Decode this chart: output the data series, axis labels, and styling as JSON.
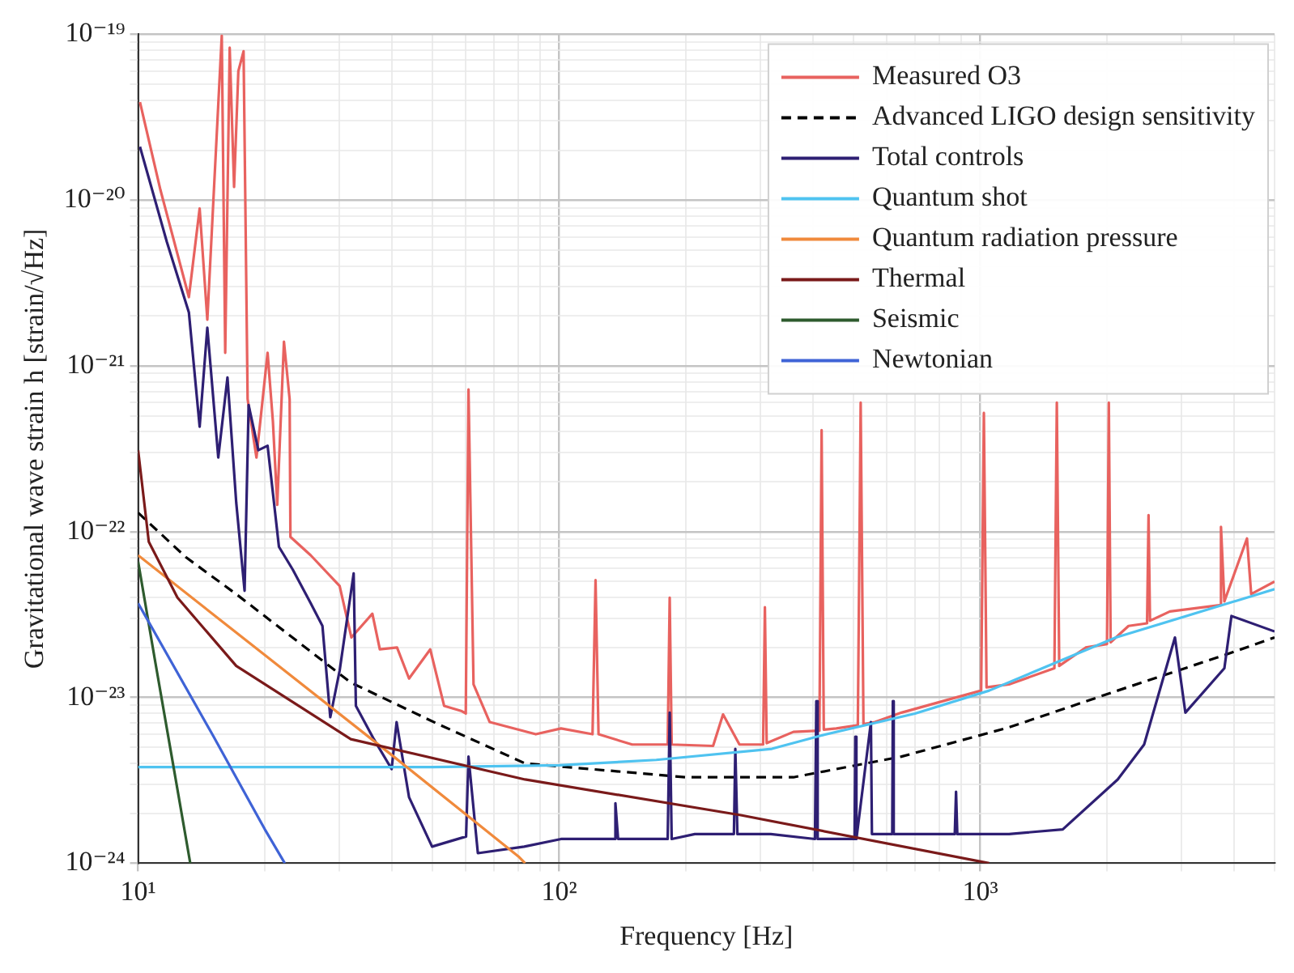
{
  "chart_data": {
    "type": "line",
    "xlabel": "Frequency [Hz]",
    "ylabel": "Gravitational wave strain h [strain/√Hz]",
    "log": "xy",
    "grid": true,
    "legend": "top right",
    "xlim": [
      10,
      5000
    ],
    "xticks": [
      {
        "value": 10,
        "label": "10¹"
      },
      {
        "value": 20,
        "label": null
      },
      {
        "value": 30,
        "label": null
      },
      {
        "value": 40,
        "label": null
      },
      {
        "value": 50,
        "label": null
      },
      {
        "value": 60,
        "label": null
      },
      {
        "value": 70,
        "label": null
      },
      {
        "value": 80,
        "label": null
      },
      {
        "value": 90,
        "label": null
      },
      {
        "value": 100,
        "label": "10²"
      },
      {
        "value": 200,
        "label": null
      },
      {
        "value": 300,
        "label": null
      },
      {
        "value": 400,
        "label": null
      },
      {
        "value": 500,
        "label": null
      },
      {
        "value": 600,
        "label": null
      },
      {
        "value": 700,
        "label": null
      },
      {
        "value": 800,
        "label": null
      },
      {
        "value": 900,
        "label": null
      },
      {
        "value": 1000,
        "label": "10³"
      },
      {
        "value": 2000,
        "label": null
      },
      {
        "value": 3000,
        "label": null
      },
      {
        "value": 4000,
        "label": null
      },
      {
        "value": 5000,
        "label": null
      }
    ],
    "ylim": [
      1e-24,
      1e-19
    ],
    "yticks": [
      {
        "value": 1e-24,
        "label": "10⁻²⁴"
      },
      {
        "value": 2e-24,
        "label": null
      },
      {
        "value": 3e-24,
        "label": null
      },
      {
        "value": 4e-24,
        "label": null
      },
      {
        "value": 5e-24,
        "label": null
      },
      {
        "value": 6e-24,
        "label": null
      },
      {
        "value": 7e-24,
        "label": null
      },
      {
        "value": 8e-24,
        "label": null
      },
      {
        "value": 9e-24,
        "label": null
      },
      {
        "value": 1e-23,
        "label": "10⁻²³"
      },
      {
        "value": 2e-23,
        "label": null
      },
      {
        "value": 3e-23,
        "label": null
      },
      {
        "value": 4e-23,
        "label": null
      },
      {
        "value": 5e-23,
        "label": null
      },
      {
        "value": 6e-23,
        "label": null
      },
      {
        "value": 7e-23,
        "label": null
      },
      {
        "value": 8e-23,
        "label": null
      },
      {
        "value": 9e-23,
        "label": null
      },
      {
        "value": 1e-22,
        "label": "10⁻²²"
      },
      {
        "value": 2e-22,
        "label": null
      },
      {
        "value": 3e-22,
        "label": null
      },
      {
        "value": 4e-22,
        "label": null
      },
      {
        "value": 5e-22,
        "label": null
      },
      {
        "value": 6e-22,
        "label": null
      },
      {
        "value": 7e-22,
        "label": null
      },
      {
        "value": 8e-22,
        "label": null
      },
      {
        "value": 9e-22,
        "label": null
      },
      {
        "value": 1e-21,
        "label": "10⁻²¹"
      },
      {
        "value": 2e-21,
        "label": null
      },
      {
        "value": 3e-21,
        "label": null
      },
      {
        "value": 4e-21,
        "label": null
      },
      {
        "value": 5e-21,
        "label": null
      },
      {
        "value": 6e-21,
        "label": null
      },
      {
        "value": 7e-21,
        "label": null
      },
      {
        "value": 8e-21,
        "label": null
      },
      {
        "value": 9e-21,
        "label": null
      },
      {
        "value": 1e-20,
        "label": "10⁻²⁰"
      },
      {
        "value": 2e-20,
        "label": null
      },
      {
        "value": 3e-20,
        "label": null
      },
      {
        "value": 4e-20,
        "label": null
      },
      {
        "value": 5e-20,
        "label": null
      },
      {
        "value": 6e-20,
        "label": null
      },
      {
        "value": 7e-20,
        "label": null
      },
      {
        "value": 8e-20,
        "label": null
      },
      {
        "value": 9e-20,
        "label": null
      },
      {
        "value": 1e-19,
        "label": "10⁻¹⁹"
      }
    ],
    "series": [
      {
        "name": "Measured O3",
        "color": "#e8625f",
        "x": [
          10.1,
          11.3,
          13.2,
          14.0,
          14.6,
          15.8,
          16.1,
          16.5,
          16.9,
          17.3,
          17.8,
          18.2,
          19.1,
          20.3,
          20.9,
          21.4,
          22.2,
          22.9,
          23.0,
          25.7,
          30.1,
          32.1,
          36.0,
          37.5,
          41.2,
          44.0,
          49.4,
          53.3,
          58.5,
          60,
          60.9,
          62.6,
          68.4,
          88,
          101,
          120,
          122,
          124,
          149,
          181,
          183,
          185,
          232,
          245,
          268,
          305,
          308,
          311,
          360,
          415,
          420,
          425,
          455,
          512,
          520,
          528,
          562,
          650,
          876,
          1005,
          1020,
          1035,
          1170,
          1500,
          1520,
          1540,
          1780,
          2000,
          2020,
          2040,
          2250,
          2490,
          2510,
          2530,
          2820,
          3700,
          3730,
          3800,
          4300,
          4400,
          5000
        ],
        "values": [
          3.9e-20,
          1.15e-20,
          2.6e-21,
          8.9e-21,
          1.9e-21,
          9.8e-20,
          1.2e-21,
          8.3e-20,
          1.2e-20,
          6e-20,
          7.9e-20,
          6.3e-22,
          2.8e-22,
          1.2e-21,
          4.6e-22,
          1.45e-22,
          1.4e-21,
          6.3e-22,
          9.3e-23,
          7.2e-23,
          4.7e-23,
          2.3e-23,
          3.2e-23,
          1.95e-23,
          2e-23,
          1.3e-23,
          1.95e-23,
          8.9e-24,
          8.3e-24,
          8e-24,
          7.2e-22,
          1.2e-23,
          7.1e-24,
          6e-24,
          6.5e-24,
          6e-24,
          5.1e-23,
          6e-24,
          5.2e-24,
          5.2e-24,
          4e-23,
          5.2e-24,
          5.1e-24,
          7.9e-24,
          5.2e-24,
          5.2e-24,
          3.5e-23,
          5.3e-24,
          6.2e-24,
          6.3e-24,
          4.1e-22,
          6.4e-24,
          6.5e-24,
          6.8e-24,
          6e-22,
          6.9e-24,
          7.1e-24,
          8.1e-24,
          1e-23,
          1.1e-23,
          5.2e-22,
          1.15e-23,
          1.2e-23,
          1.5e-23,
          6e-22,
          1.55e-23,
          2e-23,
          2.1e-23,
          6e-22,
          2.15e-23,
          2.7e-23,
          2.8e-23,
          1.26e-22,
          2.9e-23,
          3.3e-23,
          3.6e-23,
          1.07e-22,
          3.8e-23,
          9.1e-23,
          4.2e-23,
          5e-23
        ]
      },
      {
        "name": "Advanced LIGO design sensitivity",
        "color": "#000000",
        "line_style": "dashed",
        "x": [
          10,
          13,
          17.1,
          32,
          51,
          83,
          200,
          360,
          650,
          1170,
          2120,
          3800,
          5000
        ],
        "values": [
          1.3e-22,
          7e-23,
          4.2e-23,
          1.23e-23,
          7e-24,
          4e-24,
          3.3e-24,
          3.3e-24,
          4.4e-24,
          6.6e-24,
          1.1e-23,
          1.8e-23,
          2.3e-23
        ]
      },
      {
        "name": "Total controls",
        "color": "#2e1f73",
        "x": [
          10.1,
          11.7,
          13.2,
          14.0,
          14.6,
          15.5,
          16.3,
          17.1,
          17.9,
          18.3,
          19.3,
          20.3,
          21.6,
          23.3,
          25.7,
          27.4,
          28.6,
          30.1,
          32.5,
          32.9,
          36.3,
          40.0,
          41.1,
          44.0,
          49.9,
          60.1,
          60.9,
          64.1,
          82.6,
          101,
          135,
          136,
          138,
          181,
          183,
          185,
          210,
          260,
          262,
          265,
          318,
          405,
          408,
          411,
          455,
          503,
          505,
          508,
          550,
          553,
          618,
          620,
          623,
          750,
          870,
          876,
          882,
          1170,
          1570,
          2120,
          2450,
          2900,
          3070,
          3800,
          3950,
          5000
        ],
        "values": [
          2.1e-20,
          5.6e-21,
          2.1e-21,
          4.3e-22,
          1.7e-21,
          2.8e-22,
          8.5e-22,
          1.5e-22,
          4.4e-23,
          5.8e-22,
          3.1e-22,
          3.3e-22,
          8.1e-23,
          5.9e-23,
          3.7e-23,
          2.7e-23,
          7.6e-24,
          1.45e-23,
          5.6e-23,
          8.9e-24,
          5.6e-24,
          3.7e-24,
          7.1e-24,
          2.5e-24,
          1.26e-24,
          1.45e-24,
          4.4e-24,
          1.15e-24,
          1.26e-24,
          1.4e-24,
          1.4e-24,
          2.3e-24,
          1.4e-24,
          1.4e-24,
          8.1e-24,
          1.4e-24,
          1.5e-24,
          1.5e-24,
          4.9e-24,
          1.5e-24,
          1.5e-24,
          1.4e-24,
          9.5e-24,
          1.4e-24,
          1.4e-24,
          1.4e-24,
          5.8e-24,
          1.4e-24,
          7.1e-24,
          1.5e-24,
          1.5e-24,
          9.5e-24,
          1.5e-24,
          1.5e-24,
          1.5e-24,
          2.7e-24,
          1.5e-24,
          1.5e-24,
          1.6e-24,
          3.2e-24,
          5.2e-24,
          2.3e-23,
          8.1e-24,
          1.5e-23,
          3.1e-23,
          2.5e-23
        ]
      },
      {
        "name": "Quantum shot",
        "color": "#4fc3f0",
        "x": [
          10,
          50,
          100,
          170,
          320,
          420,
          700,
          1050,
          2100,
          5000
        ],
        "values": [
          3.8e-24,
          3.8e-24,
          3.9e-24,
          4.2e-24,
          4.9e-24,
          5.9e-24,
          8e-24,
          1.1e-23,
          2.3e-23,
          4.5e-23
        ]
      },
      {
        "name": "Quantum radiation pressure",
        "color": "#f08a3c",
        "x": [
          10,
          20,
          40,
          80,
          83
        ],
        "values": [
          7.2e-23,
          1.8e-23,
          4.5e-24,
          1.1e-24,
          1e-24
        ]
      },
      {
        "name": "Thermal",
        "color": "#7a1a1a",
        "x": [
          10,
          10.6,
          12.4,
          17.1,
          32,
          83,
          270,
          1050
        ],
        "values": [
          3.1e-22,
          8.7e-23,
          4e-23,
          1.55e-23,
          5.6e-24,
          3.2e-24,
          1.95e-24,
          1e-24
        ]
      },
      {
        "name": "Seismic",
        "color": "#2e5b2e",
        "x": [
          10,
          11,
          12,
          13.3
        ],
        "values": [
          6.6e-23,
          1.6e-23,
          4.5e-24,
          1e-24
        ]
      },
      {
        "name": "Newtonian",
        "color": "#3f63d6",
        "x": [
          10,
          15,
          20,
          22.3
        ],
        "values": [
          3.7e-23,
          6e-24,
          1.6e-24,
          1e-24
        ]
      }
    ]
  }
}
